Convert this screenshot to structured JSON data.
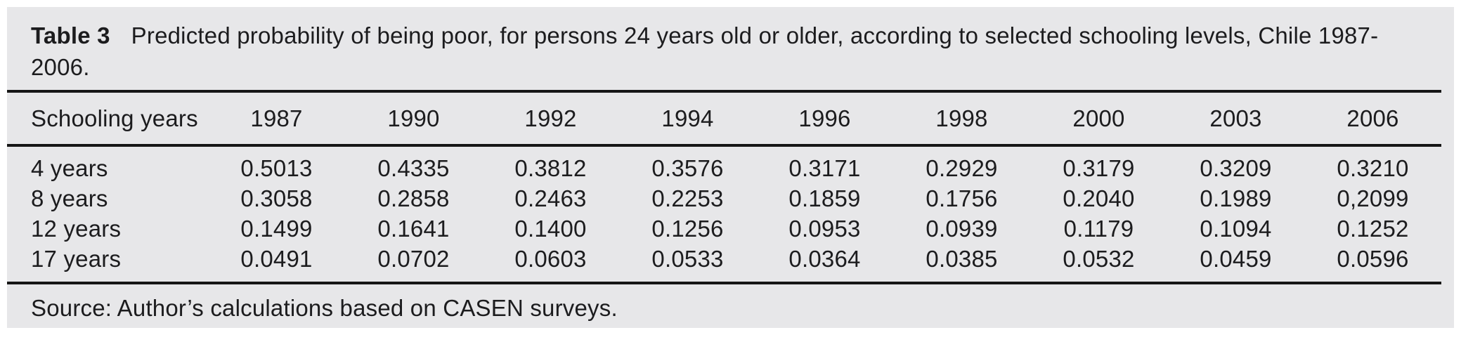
{
  "caption": {
    "label": "Table 3",
    "text": "Predicted probability of being poor, for persons 24 years old or older, according to selected schooling levels, Chile 1987-2006."
  },
  "table": {
    "header": {
      "label": "Schooling years",
      "years": [
        "1987",
        "1990",
        "1992",
        "1994",
        "1996",
        "1998",
        "2000",
        "2003",
        "2006"
      ]
    },
    "rows": [
      {
        "label": "4 years",
        "values": [
          "0.5013",
          "0.4335",
          "0.3812",
          "0.3576",
          "0.3171",
          "0.2929",
          "0.3179",
          "0.3209",
          "0.3210"
        ]
      },
      {
        "label": "8 years",
        "values": [
          "0.3058",
          "0.2858",
          "0.2463",
          "0.2253",
          "0.1859",
          "0.1756",
          "0.2040",
          "0.1989",
          "0,2099"
        ]
      },
      {
        "label": "12 years",
        "values": [
          "0.1499",
          "0.1641",
          "0.1400",
          "0.1256",
          "0.0953",
          "0.0939",
          "0.1179",
          "0.1094",
          "0.1252"
        ]
      },
      {
        "label": "17 years",
        "values": [
          "0.0491",
          "0.0702",
          "0.0603",
          "0.0533",
          "0.0364",
          "0.0385",
          "0.0532",
          "0.0459",
          "0.0596"
        ]
      }
    ]
  },
  "source": "Source: Author’s calculations based on CASEN surveys.",
  "chart_data": {
    "type": "table",
    "title": "Table 3 Predicted probability of being poor, for persons 24 years old or older, according to selected schooling levels, Chile 1987-2006.",
    "categories": [
      "1987",
      "1990",
      "1992",
      "1994",
      "1996",
      "1998",
      "2000",
      "2003",
      "2006"
    ],
    "series": [
      {
        "name": "4 years",
        "values": [
          0.5013,
          0.4335,
          0.3812,
          0.3576,
          0.3171,
          0.2929,
          0.3179,
          0.3209,
          0.321
        ]
      },
      {
        "name": "8 years",
        "values": [
          0.3058,
          0.2858,
          0.2463,
          0.2253,
          0.1859,
          0.1756,
          0.204,
          0.1989,
          0.2099
        ]
      },
      {
        "name": "12 years",
        "values": [
          0.1499,
          0.1641,
          0.14,
          0.1256,
          0.0953,
          0.0939,
          0.1179,
          0.1094,
          0.1252
        ]
      },
      {
        "name": "17 years",
        "values": [
          0.0491,
          0.0702,
          0.0603,
          0.0533,
          0.0364,
          0.0385,
          0.0532,
          0.0459,
          0.0596
        ]
      }
    ]
  },
  "colors": {
    "background": "#e7e7e9",
    "text": "#1c1c1e",
    "rule": "#161616"
  }
}
